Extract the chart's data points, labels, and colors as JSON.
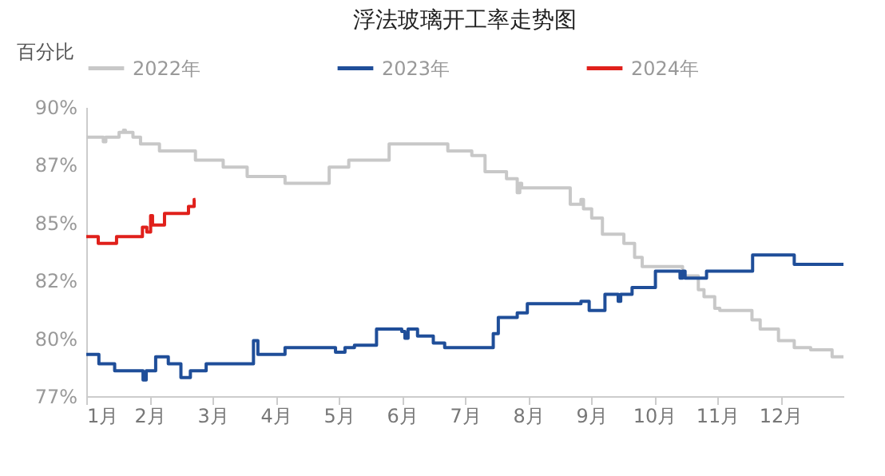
{
  "chart_data": {
    "type": "step",
    "title": "浮法玻璃开工率走势图",
    "ylabel": "百分比",
    "legend": "top",
    "grid": false,
    "xlim": [
      1,
      13
    ],
    "xticks": [
      {
        "value": 1,
        "label": "1月"
      },
      {
        "value": 2,
        "label": "2月"
      },
      {
        "value": 3,
        "label": "3月"
      },
      {
        "value": 4,
        "label": "4月"
      },
      {
        "value": 5,
        "label": "5月"
      },
      {
        "value": 6,
        "label": "6月"
      },
      {
        "value": 7,
        "label": "7月"
      },
      {
        "value": 8,
        "label": "8月"
      },
      {
        "value": 9,
        "label": "9月"
      },
      {
        "value": 10,
        "label": "10月"
      },
      {
        "value": 11,
        "label": "11月"
      },
      {
        "value": 12,
        "label": "12月"
      }
    ],
    "ylim": [
      77.5,
      90
    ],
    "yticks": [
      {
        "value": 77.5,
        "label": "77%"
      },
      {
        "value": 80,
        "label": "80%"
      },
      {
        "value": 82.5,
        "label": "82%"
      },
      {
        "value": 85,
        "label": "85%"
      },
      {
        "value": 87.5,
        "label": "87%"
      },
      {
        "value": 90,
        "label": "90%"
      }
    ],
    "series": [
      {
        "name": "2022年",
        "color": "#c8c8c8",
        "x": [
          1,
          1.27,
          1.31,
          1.52,
          1.59,
          1.62,
          1.74,
          1.86,
          2.16,
          2.73,
          3.17,
          3.55,
          4.15,
          4.85,
          5.16,
          5.8,
          6.73,
          7.11,
          7.32,
          7.66,
          7.83,
          7.87,
          7.9,
          8.67,
          8.84,
          8.88,
          9.01,
          9.18,
          9.52,
          9.69,
          9.81,
          10.45,
          10.7,
          10.79,
          10.96,
          11.04,
          11.55,
          11.68,
          11.97,
          12.22,
          12.48,
          12.82,
          13
        ],
        "values": [
          88.7,
          88.5,
          88.7,
          88.9,
          89.0,
          88.9,
          88.7,
          88.4,
          88.1,
          87.7,
          87.4,
          87.0,
          86.7,
          87.4,
          87.7,
          88.4,
          88.1,
          87.9,
          87.2,
          86.9,
          86.3,
          86.7,
          86.5,
          85.8,
          86.0,
          85.6,
          85.2,
          84.5,
          84.1,
          83.5,
          83.1,
          82.7,
          82.1,
          81.8,
          81.3,
          81.2,
          80.8,
          80.4,
          79.9,
          79.6,
          79.5,
          79.2,
          79.2
        ]
      },
      {
        "name": "2023年",
        "color": "#1f4e99",
        "x": [
          1,
          1.2,
          1.45,
          1.9,
          1.95,
          2.1,
          2.3,
          2.5,
          2.65,
          2.9,
          3.65,
          3.72,
          4.15,
          4.95,
          5.1,
          5.25,
          5.6,
          6.0,
          6.05,
          6.1,
          6.25,
          6.5,
          6.68,
          7.45,
          7.53,
          7.83,
          7.99,
          8.84,
          8.97,
          9.22,
          9.43,
          9.47,
          9.65,
          10.02,
          10.41,
          10.45,
          10.49,
          10.83,
          11.56,
          11.97,
          12.22,
          13
        ],
        "values": [
          79.3,
          78.9,
          78.6,
          78.2,
          78.6,
          79.2,
          78.9,
          78.3,
          78.6,
          78.9,
          79.9,
          79.3,
          79.6,
          79.4,
          79.6,
          79.7,
          80.4,
          80.3,
          80.0,
          80.4,
          80.1,
          79.8,
          79.6,
          80.2,
          80.9,
          81.1,
          81.5,
          81.6,
          81.2,
          81.9,
          81.6,
          81.9,
          82.2,
          82.9,
          82.6,
          82.9,
          82.6,
          82.9,
          83.6,
          83.6,
          83.2,
          83.2
        ]
      },
      {
        "name": "2024年",
        "color": "#e0201b",
        "x": [
          1,
          1.19,
          1.48,
          1.89,
          1.96,
          2.02,
          2.05,
          2.24,
          2.62,
          2.71,
          2.73
        ],
        "values": [
          84.4,
          84.1,
          84.4,
          84.8,
          84.6,
          85.3,
          84.9,
          85.4,
          85.7,
          86.0,
          86.0
        ]
      }
    ]
  }
}
